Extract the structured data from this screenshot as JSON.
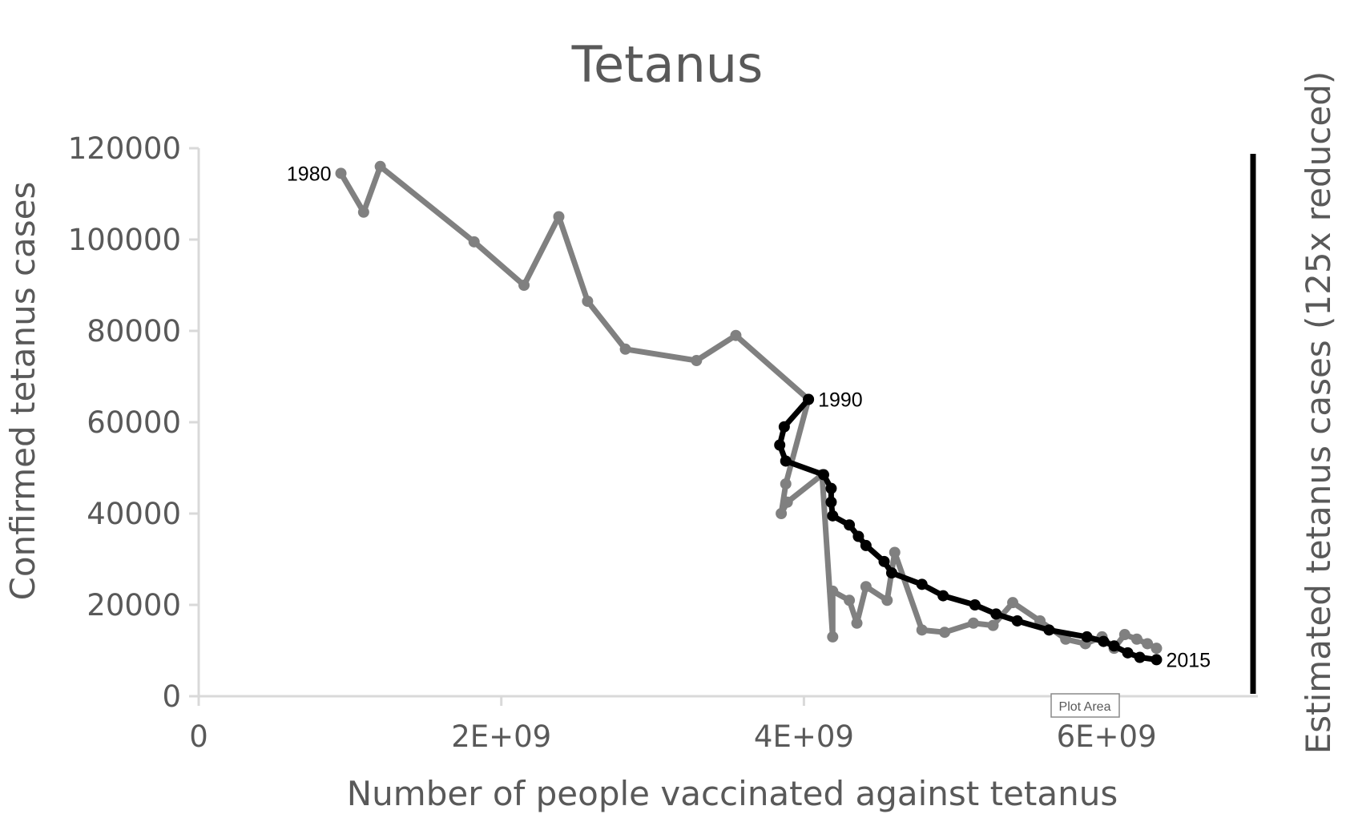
{
  "chart_data": {
    "type": "line",
    "title": "Tetanus",
    "xlabel": "Number of people vaccinated against tetanus",
    "ylabel": "Confirmed tetanus cases",
    "y2label": "Estimated tetanus cases (125x reduced)",
    "xlim": [
      0,
      7000000000
    ],
    "ylim": [
      0,
      120000
    ],
    "xticks": [
      0,
      2000000000,
      4000000000,
      6000000000
    ],
    "xtick_labels": [
      "0",
      "2E+09",
      "4E+09",
      "6E+09"
    ],
    "yticks": [
      0,
      20000,
      40000,
      60000,
      80000,
      100000,
      120000
    ],
    "ytick_labels": [
      "0",
      "20000",
      "40000",
      "60000",
      "80000",
      "100000",
      "120000"
    ],
    "grid": false,
    "legend": "none",
    "series": [
      {
        "color": "#808080",
        "x": [
          940000000,
          1090000000,
          1200000000,
          1820000000,
          2150000000,
          2380000000,
          2570000000,
          2820000000,
          3290000000,
          3550000000,
          4030000000,
          3880000000,
          3850000000,
          3890000000,
          4120000000,
          4190000000,
          4190000000,
          4300000000,
          4350000000,
          4410000000,
          4550000000,
          4600000000,
          4780000000,
          4930000000,
          5120000000,
          5250000000,
          5380000000,
          5560000000,
          5730000000,
          5860000000,
          5970000000,
          6050000000,
          6120000000,
          6200000000,
          6270000000,
          6330000000
        ],
        "y": [
          114500,
          106000,
          116000,
          99500,
          90000,
          105000,
          86500,
          76000,
          73500,
          79000,
          65000,
          46500,
          40000,
          42500,
          48500,
          13000,
          23000,
          21000,
          16000,
          24000,
          21000,
          31500,
          14500,
          14000,
          16000,
          15500,
          20500,
          16500,
          12500,
          11500,
          13000,
          10500,
          13500,
          12500,
          11500,
          10500
        ],
        "point_labels": [
          {
            "index": 0,
            "text": "1980",
            "side": "left"
          }
        ]
      },
      {
        "color": "#000000",
        "x": [
          4030000000,
          3870000000,
          3840000000,
          3880000000,
          4130000000,
          4180000000,
          4180000000,
          4190000000,
          4300000000,
          4360000000,
          4410000000,
          4530000000,
          4580000000,
          4780000000,
          4920000000,
          5130000000,
          5270000000,
          5410000000,
          5620000000,
          5870000000,
          5980000000,
          6050000000,
          6140000000,
          6220000000,
          6330000000
        ],
        "y": [
          65000,
          59000,
          55000,
          51500,
          48500,
          45500,
          42500,
          39500,
          37500,
          35000,
          33000,
          29500,
          27000,
          24500,
          22000,
          20000,
          18000,
          16500,
          14500,
          13000,
          12000,
          11000,
          9500,
          8500,
          8000
        ],
        "point_labels": [
          {
            "index": 0,
            "text": "1990",
            "side": "right"
          },
          {
            "index": 24,
            "text": "2015",
            "side": "right"
          }
        ]
      }
    ],
    "annotations": [
      {
        "text": "Plot Area"
      }
    ]
  }
}
